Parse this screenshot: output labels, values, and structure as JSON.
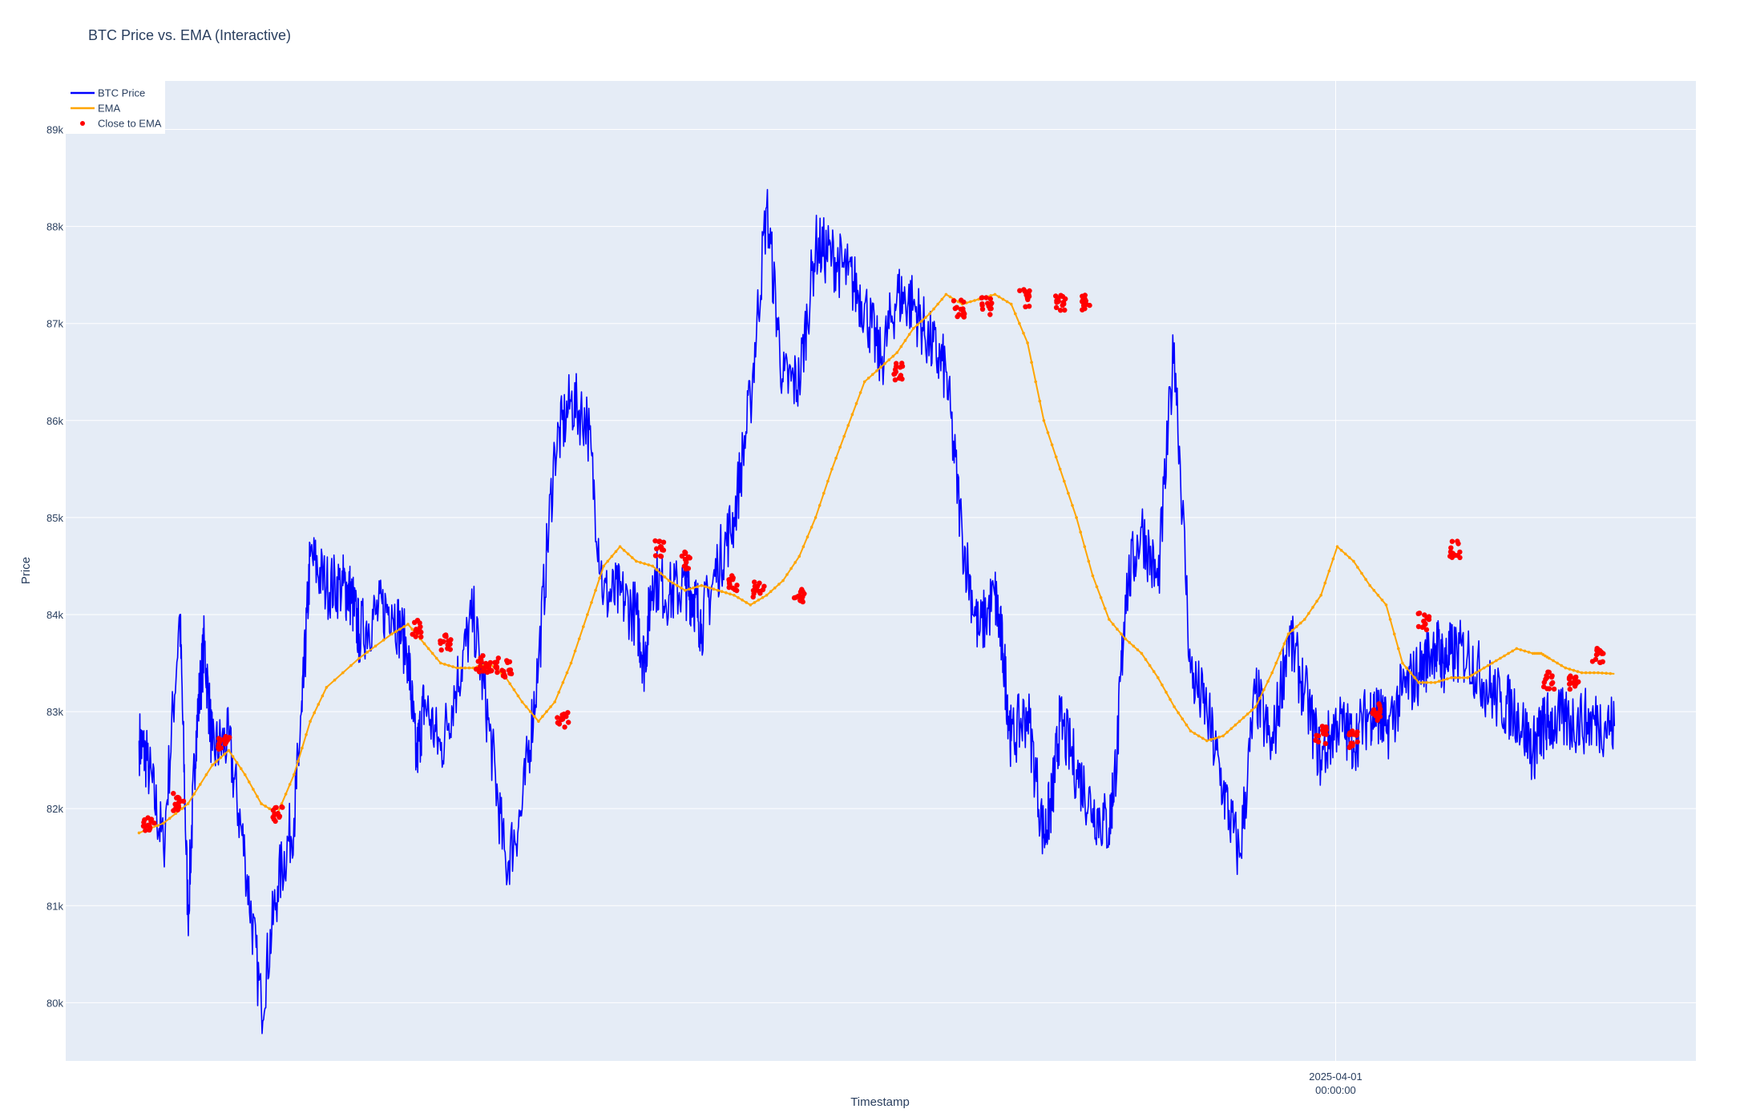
{
  "chart_data": {
    "type": "line",
    "title": "BTC Price vs. EMA (Interactive)",
    "xlabel": "Timestamp",
    "ylabel": "Price",
    "ylim": [
      79400,
      89500
    ],
    "x_range": [
      0,
      1
    ],
    "x_ticks": [
      {
        "pos": 0.779,
        "label": "2025-04-01",
        "sublabel": "00:00:00"
      }
    ],
    "y_ticks": [
      {
        "value": 80000,
        "label": "80k"
      },
      {
        "value": 81000,
        "label": "81k"
      },
      {
        "value": 82000,
        "label": "82k"
      },
      {
        "value": 83000,
        "label": "83k"
      },
      {
        "value": 84000,
        "label": "84k"
      },
      {
        "value": 85000,
        "label": "85k"
      },
      {
        "value": 86000,
        "label": "86k"
      },
      {
        "value": 87000,
        "label": "87k"
      },
      {
        "value": 88000,
        "label": "88k"
      },
      {
        "value": 89000,
        "label": "89k"
      }
    ],
    "grid": true,
    "legend_position": "top-left",
    "colors": {
      "price": "#0000ff",
      "ema": "#ffa500",
      "close": "#ff0000",
      "plot_bg": "#e5ecf6",
      "grid": "#ffffff"
    },
    "series": [
      {
        "name": "BTC Price",
        "mode": "lines",
        "x": [
          0.045,
          0.05,
          0.06,
          0.07,
          0.075,
          0.08,
          0.085,
          0.09,
          0.1,
          0.11,
          0.12,
          0.13,
          0.14,
          0.145,
          0.15,
          0.16,
          0.17,
          0.175,
          0.18,
          0.19,
          0.2,
          0.21,
          0.215,
          0.22,
          0.23,
          0.24,
          0.25,
          0.26,
          0.27,
          0.28,
          0.29,
          0.3,
          0.31,
          0.32,
          0.33,
          0.34,
          0.35,
          0.355,
          0.36,
          0.37,
          0.38,
          0.385,
          0.39,
          0.4,
          0.41,
          0.42,
          0.43,
          0.44,
          0.45,
          0.46,
          0.47,
          0.48,
          0.49,
          0.5,
          0.51,
          0.52,
          0.53,
          0.54,
          0.55,
          0.56,
          0.57,
          0.575,
          0.58,
          0.59,
          0.6,
          0.605,
          0.61,
          0.62,
          0.63,
          0.64,
          0.645,
          0.65,
          0.66,
          0.67,
          0.68,
          0.69,
          0.7,
          0.71,
          0.72,
          0.73,
          0.74,
          0.75,
          0.76,
          0.77,
          0.78,
          0.79,
          0.8,
          0.805,
          0.81,
          0.82,
          0.83,
          0.84,
          0.845,
          0.85,
          0.86,
          0.87,
          0.88,
          0.89,
          0.9,
          0.905,
          0.91,
          0.92,
          0.93,
          0.94,
          0.95
        ],
        "y": [
          82700,
          82500,
          81600,
          84000,
          80900,
          82800,
          83700,
          82600,
          82700,
          81500,
          79950,
          81200,
          81900,
          83000,
          84600,
          84300,
          84300,
          84200,
          83800,
          84000,
          84100,
          83600,
          82500,
          83100,
          82600,
          83300,
          84000,
          82800,
          81400,
          82000,
          83500,
          85700,
          86200,
          86000,
          84200,
          84200,
          84000,
          83500,
          84400,
          84200,
          84300,
          84200,
          83900,
          84500,
          85000,
          86200,
          88200,
          86400,
          86400,
          87800,
          87700,
          87500,
          87200,
          86600,
          87300,
          87200,
          86800,
          86500,
          84800,
          83800,
          84200,
          83600,
          82700,
          83000,
          81700,
          82100,
          82900,
          82400,
          82000,
          81800,
          82600,
          84200,
          84900,
          84300,
          86800,
          83400,
          83000,
          82200,
          81500,
          83200,
          82600,
          83800,
          83200,
          82500,
          82900,
          82700,
          83000,
          83000,
          82800,
          83200,
          83400,
          83700,
          83500,
          83600,
          83600,
          83300,
          83100,
          83000,
          82600,
          82800,
          82900,
          82900,
          82900,
          82900,
          82850
        ]
      },
      {
        "name": "EMA",
        "mode": "lines+markers",
        "x": [
          0.045,
          0.06,
          0.075,
          0.09,
          0.1,
          0.11,
          0.12,
          0.13,
          0.14,
          0.15,
          0.16,
          0.18,
          0.2,
          0.21,
          0.22,
          0.23,
          0.24,
          0.25,
          0.26,
          0.27,
          0.28,
          0.29,
          0.3,
          0.31,
          0.32,
          0.33,
          0.34,
          0.35,
          0.36,
          0.37,
          0.38,
          0.39,
          0.4,
          0.41,
          0.42,
          0.43,
          0.44,
          0.45,
          0.46,
          0.47,
          0.48,
          0.49,
          0.5,
          0.51,
          0.52,
          0.53,
          0.54,
          0.55,
          0.56,
          0.57,
          0.58,
          0.59,
          0.6,
          0.61,
          0.62,
          0.63,
          0.64,
          0.65,
          0.66,
          0.67,
          0.68,
          0.69,
          0.7,
          0.71,
          0.72,
          0.73,
          0.74,
          0.75,
          0.76,
          0.77,
          0.78,
          0.79,
          0.8,
          0.81,
          0.82,
          0.83,
          0.84,
          0.85,
          0.86,
          0.87,
          0.88,
          0.89,
          0.9,
          0.905,
          0.91,
          0.92,
          0.93,
          0.94,
          0.95
        ],
        "y": [
          81750,
          81850,
          82050,
          82450,
          82600,
          82350,
          82050,
          81950,
          82350,
          82900,
          83250,
          83550,
          83800,
          83900,
          83700,
          83500,
          83450,
          83450,
          83500,
          83350,
          83100,
          82900,
          83100,
          83500,
          84000,
          84500,
          84700,
          84550,
          84500,
          84350,
          84250,
          84300,
          84250,
          84200,
          84100,
          84200,
          84350,
          84600,
          85000,
          85500,
          85950,
          86400,
          86550,
          86700,
          86950,
          87100,
          87300,
          87200,
          87250,
          87300,
          87200,
          86800,
          86000,
          85500,
          85000,
          84400,
          83950,
          83750,
          83600,
          83350,
          83050,
          82800,
          82700,
          82750,
          82900,
          83050,
          83400,
          83800,
          83950,
          84200,
          84700,
          84550,
          84300,
          84100,
          83500,
          83300,
          83300,
          83350,
          83350,
          83450,
          83550,
          83650,
          83600,
          83600,
          83550,
          83450,
          83400,
          83400,
          83390
        ]
      }
    ],
    "legend": [
      {
        "name": "BTC Price",
        "kind": "line"
      },
      {
        "name": "EMA",
        "kind": "line"
      },
      {
        "name": "Close to EMA",
        "kind": "marker"
      }
    ],
    "close_to_ema": {
      "name": "Close to EMA",
      "mode": "markers",
      "clusters": [
        {
          "x": 0.051,
          "y": 81830
        },
        {
          "x": 0.069,
          "y": 82070
        },
        {
          "x": 0.097,
          "y": 82680
        },
        {
          "x": 0.13,
          "y": 81960
        },
        {
          "x": 0.215,
          "y": 83860
        },
        {
          "x": 0.233,
          "y": 83720
        },
        {
          "x": 0.255,
          "y": 83500
        },
        {
          "x": 0.262,
          "y": 83480
        },
        {
          "x": 0.27,
          "y": 83440
        },
        {
          "x": 0.305,
          "y": 82900
        },
        {
          "x": 0.365,
          "y": 84680
        },
        {
          "x": 0.381,
          "y": 84560
        },
        {
          "x": 0.41,
          "y": 84320
        },
        {
          "x": 0.425,
          "y": 84260
        },
        {
          "x": 0.45,
          "y": 84180
        },
        {
          "x": 0.51,
          "y": 86500
        },
        {
          "x": 0.548,
          "y": 87150
        },
        {
          "x": 0.565,
          "y": 87180
        },
        {
          "x": 0.588,
          "y": 87260
        },
        {
          "x": 0.61,
          "y": 87200
        },
        {
          "x": 0.625,
          "y": 87220
        },
        {
          "x": 0.77,
          "y": 82760
        },
        {
          "x": 0.79,
          "y": 82720
        },
        {
          "x": 0.805,
          "y": 83000
        },
        {
          "x": 0.833,
          "y": 83930
        },
        {
          "x": 0.852,
          "y": 84670
        },
        {
          "x": 0.91,
          "y": 83320
        },
        {
          "x": 0.925,
          "y": 83280
        },
        {
          "x": 0.94,
          "y": 83580
        }
      ]
    }
  }
}
